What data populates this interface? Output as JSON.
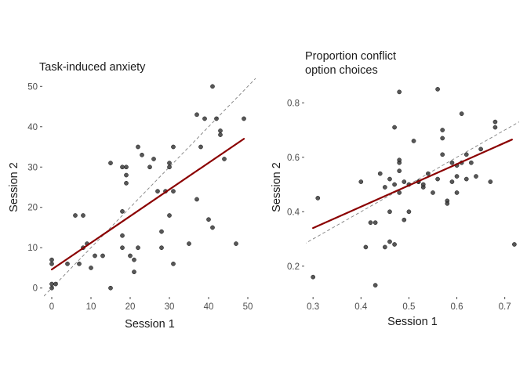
{
  "chart_data": [
    {
      "type": "scatter",
      "title": [
        "Task-induced anxiety"
      ],
      "xlabel": "Session 1",
      "ylabel": "Session 2",
      "xlim": [
        -2,
        52
      ],
      "ylim": [
        -2,
        52
      ],
      "xticks": [
        0,
        10,
        20,
        30,
        40,
        50
      ],
      "yticks": [
        0,
        10,
        20,
        30,
        40,
        50
      ],
      "xtick_labels": [
        "0",
        "10",
        "20",
        "30",
        "40",
        "50"
      ],
      "ytick_labels": [
        "0",
        "10",
        "20",
        "30",
        "40",
        "50"
      ],
      "grid": false,
      "point_color": "#3a3a3a",
      "fit_color": "#8b0000",
      "identity_color": "#808080",
      "fit_line": {
        "x": [
          0,
          49
        ],
        "y": [
          4.6,
          37.0
        ]
      },
      "identity_line": {
        "x": [
          -2,
          52
        ],
        "y": [
          -2,
          52
        ]
      },
      "points": [
        [
          0,
          0
        ],
        [
          0,
          1
        ],
        [
          0,
          6
        ],
        [
          0,
          7
        ],
        [
          1,
          1
        ],
        [
          4,
          6
        ],
        [
          6,
          18
        ],
        [
          7,
          6
        ],
        [
          8,
          10
        ],
        [
          8,
          18
        ],
        [
          9,
          11
        ],
        [
          10,
          5
        ],
        [
          11,
          8
        ],
        [
          13,
          8
        ],
        [
          15,
          0
        ],
        [
          15,
          31
        ],
        [
          18,
          10
        ],
        [
          18,
          13
        ],
        [
          18,
          19
        ],
        [
          18,
          30
        ],
        [
          19,
          26
        ],
        [
          19,
          28
        ],
        [
          19,
          30
        ],
        [
          20,
          8
        ],
        [
          21,
          4
        ],
        [
          21,
          7
        ],
        [
          22,
          10
        ],
        [
          22,
          35
        ],
        [
          23,
          33
        ],
        [
          25,
          30
        ],
        [
          26,
          32
        ],
        [
          27,
          24
        ],
        [
          28,
          10
        ],
        [
          28,
          14
        ],
        [
          29,
          24
        ],
        [
          30,
          18
        ],
        [
          30,
          30
        ],
        [
          30,
          31
        ],
        [
          31,
          6
        ],
        [
          31,
          24
        ],
        [
          31,
          35
        ],
        [
          35,
          11
        ],
        [
          37,
          22
        ],
        [
          37,
          43
        ],
        [
          38,
          35
        ],
        [
          39,
          42
        ],
        [
          40,
          17
        ],
        [
          41,
          50
        ],
        [
          41,
          15
        ],
        [
          42,
          42
        ],
        [
          43,
          39
        ],
        [
          44,
          32
        ],
        [
          47,
          11
        ],
        [
          49,
          42
        ],
        [
          43,
          38
        ]
      ]
    },
    {
      "type": "scatter",
      "title": [
        "Proportion conflict",
        "option choices"
      ],
      "xlabel": "Session 1",
      "ylabel": "Session 2",
      "xlim": [
        0.285,
        0.73
      ],
      "ylim": [
        0.09,
        0.89
      ],
      "xticks": [
        0.3,
        0.4,
        0.5,
        0.6,
        0.7
      ],
      "yticks": [
        0.2,
        0.4,
        0.6,
        0.8
      ],
      "xtick_labels": [
        "0.3",
        "0.4",
        "0.5",
        "0.6",
        "0.7"
      ],
      "ytick_labels": [
        "0.2",
        "0.4",
        "0.6",
        "0.8"
      ],
      "grid": false,
      "point_color": "#3a3a3a",
      "fit_color": "#8b0000",
      "identity_color": "#808080",
      "fit_line": {
        "x": [
          0.3,
          0.715
        ],
        "y": [
          0.34,
          0.665
        ]
      },
      "identity_line": {
        "x": [
          0.28,
          0.735
        ],
        "y": [
          0.28,
          0.735
        ]
      },
      "points": [
        [
          0.3,
          0.16
        ],
        [
          0.31,
          0.45
        ],
        [
          0.4,
          0.51
        ],
        [
          0.41,
          0.27
        ],
        [
          0.42,
          0.36
        ],
        [
          0.43,
          0.13
        ],
        [
          0.43,
          0.36
        ],
        [
          0.44,
          0.54
        ],
        [
          0.45,
          0.27
        ],
        [
          0.45,
          0.49
        ],
        [
          0.46,
          0.29
        ],
        [
          0.46,
          0.4
        ],
        [
          0.46,
          0.52
        ],
        [
          0.47,
          0.28
        ],
        [
          0.47,
          0.5
        ],
        [
          0.47,
          0.71
        ],
        [
          0.48,
          0.55
        ],
        [
          0.48,
          0.58
        ],
        [
          0.48,
          0.47
        ],
        [
          0.48,
          0.84
        ],
        [
          0.49,
          0.37
        ],
        [
          0.49,
          0.51
        ],
        [
          0.5,
          0.4
        ],
        [
          0.5,
          0.5
        ],
        [
          0.51,
          0.66
        ],
        [
          0.52,
          0.51
        ],
        [
          0.52,
          0.51
        ],
        [
          0.53,
          0.49
        ],
        [
          0.53,
          0.5
        ],
        [
          0.54,
          0.54
        ],
        [
          0.55,
          0.47
        ],
        [
          0.56,
          0.85
        ],
        [
          0.56,
          0.52
        ],
        [
          0.57,
          0.61
        ],
        [
          0.57,
          0.7
        ],
        [
          0.57,
          0.67
        ],
        [
          0.58,
          0.44
        ],
        [
          0.58,
          0.43
        ],
        [
          0.59,
          0.51
        ],
        [
          0.59,
          0.58
        ],
        [
          0.6,
          0.53
        ],
        [
          0.6,
          0.47
        ],
        [
          0.6,
          0.57
        ],
        [
          0.61,
          0.76
        ],
        [
          0.61,
          0.58
        ],
        [
          0.62,
          0.52
        ],
        [
          0.62,
          0.61
        ],
        [
          0.63,
          0.58
        ],
        [
          0.64,
          0.53
        ],
        [
          0.65,
          0.63
        ],
        [
          0.67,
          0.51
        ],
        [
          0.68,
          0.71
        ],
        [
          0.68,
          0.73
        ],
        [
          0.72,
          0.28
        ],
        [
          0.48,
          0.59
        ]
      ]
    }
  ]
}
